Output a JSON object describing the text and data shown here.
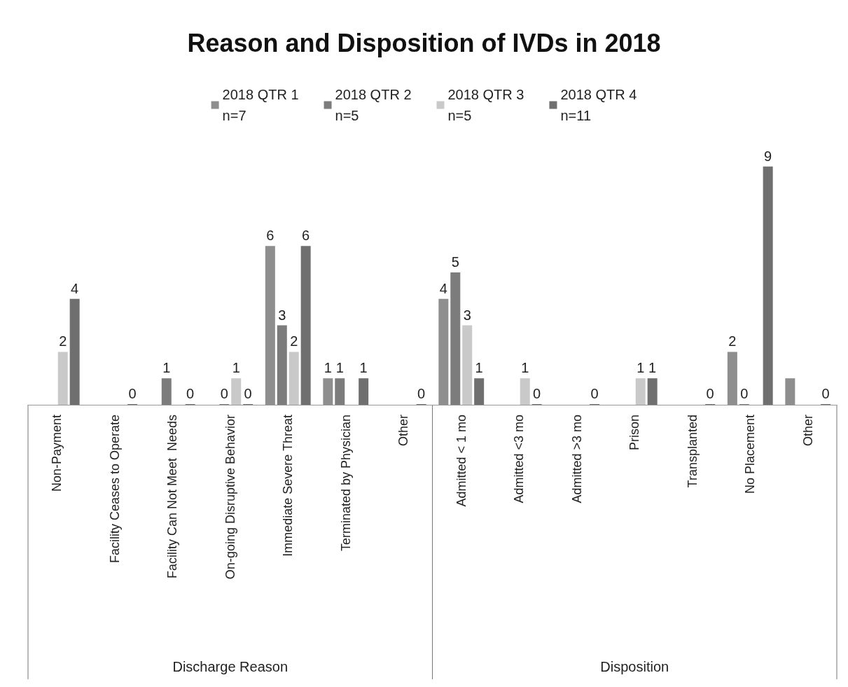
{
  "chart_data": {
    "type": "bar",
    "title": "Reason and Disposition of IVDs in 2018",
    "categories": [
      "Non-Payment",
      "Facility Ceases to Operate",
      "Facility Can Not Meet  Needs",
      "On-going Disruptive Behavior",
      "Immediate Severe Threat",
      "Terminated by Physician",
      "Other",
      "Admitted < 1 mo",
      "Admitted <3 mo",
      "Admitted >3 mo",
      "Prison",
      "Transplanted",
      "No Placement",
      "Other"
    ],
    "annotations": [
      "Discharge Reason",
      "Disposition"
    ],
    "legend": "top",
    "grid": false,
    "series": [
      {
        "name": "2018 QTR 1\nn=7",
        "color": "#8e8e8e",
        "values": [
          null,
          null,
          null,
          null,
          6,
          1,
          null,
          4,
          null,
          null,
          null,
          null,
          2,
          1
        ],
        "value_labels": [
          null,
          null,
          null,
          null,
          "6",
          "1",
          null,
          "4",
          null,
          null,
          null,
          null,
          "2",
          null
        ]
      },
      {
        "name": "2018 QTR 2\nn=5",
        "color": "#7c7c7c",
        "values": [
          null,
          null,
          1,
          0,
          3,
          1,
          null,
          5,
          null,
          null,
          null,
          null,
          0,
          null
        ],
        "value_labels": [
          null,
          null,
          "1",
          "0",
          "3",
          "1",
          null,
          "5",
          null,
          null,
          null,
          null,
          "0",
          null
        ]
      },
      {
        "name": "2018 QTR 3\nn=5",
        "color": "#c9c9c9",
        "values": [
          2,
          null,
          null,
          1,
          2,
          null,
          null,
          3,
          1,
          null,
          1,
          null,
          null,
          null
        ],
        "value_labels": [
          "2",
          null,
          null,
          "1",
          "2",
          null,
          null,
          "3",
          "1",
          null,
          "1",
          null,
          null,
          null
        ]
      },
      {
        "name": "2018 QTR 4\nn=11",
        "color": "#6f6f6f",
        "values": [
          4,
          0,
          0,
          0,
          6,
          1,
          0,
          1,
          0,
          0,
          1,
          0,
          9,
          0
        ],
        "value_labels": [
          "4",
          "0",
          "0",
          "0",
          "6",
          "1",
          "0",
          "1",
          "0",
          "0",
          "1",
          "0",
          "9",
          "0"
        ]
      }
    ]
  }
}
